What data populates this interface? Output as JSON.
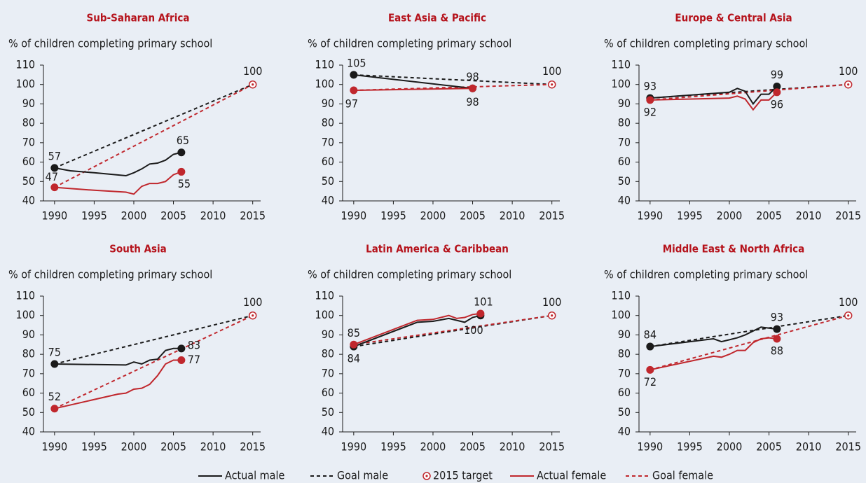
{
  "chart_data": [
    {
      "type": "line",
      "title": "Sub-Saharan Africa",
      "ylabel": "% of children completing primary school",
      "xlim": [
        1988.6,
        2016
      ],
      "xticks": [
        1990,
        1995,
        2000,
        2005,
        2010,
        2015
      ],
      "ylim": [
        40,
        110
      ],
      "yticks": [
        40,
        50,
        60,
        70,
        80,
        90,
        100,
        110
      ],
      "series": [
        {
          "name": "Actual male",
          "color": "#1a1a1a",
          "style": "solid",
          "x": [
            1990,
            1992,
            1995,
            1999,
            2000,
            2001,
            2002,
            2003,
            2004,
            2005,
            2006
          ],
          "values": [
            57,
            55.5,
            54.5,
            53,
            54.5,
            56.5,
            59,
            59.5,
            61,
            64,
            65
          ]
        },
        {
          "name": "Goal male",
          "color": "#1a1a1a",
          "style": "dashed",
          "x": [
            1990,
            2015
          ],
          "values": [
            57,
            100
          ]
        },
        {
          "name": "2015 target",
          "color": "#c0272d",
          "style": "target",
          "x": [
            2015
          ],
          "values": [
            100
          ]
        },
        {
          "name": "Actual female",
          "color": "#c0272d",
          "style": "solid",
          "x": [
            1990,
            1995,
            1999,
            2000,
            2001,
            2002,
            2003,
            2004,
            2005,
            2006
          ],
          "values": [
            47,
            45.5,
            44.5,
            43.5,
            47.5,
            49,
            49,
            50,
            53.5,
            55
          ]
        },
        {
          "name": "Goal female",
          "color": "#c0272d",
          "style": "dashed",
          "x": [
            1990,
            2015
          ],
          "values": [
            47,
            100
          ]
        }
      ]
    },
    {
      "type": "line",
      "title": "East Asia & Pacific",
      "ylabel": "% of children completing primary school",
      "xlim": [
        1988.6,
        2016
      ],
      "xticks": [
        1990,
        1995,
        2000,
        2005,
        2010,
        2015
      ],
      "ylim": [
        40,
        110
      ],
      "yticks": [
        40,
        50,
        60,
        70,
        80,
        90,
        100,
        110
      ],
      "series": [
        {
          "name": "Actual male",
          "color": "#1a1a1a",
          "style": "solid",
          "x": [
            1990,
            2005
          ],
          "values": [
            105,
            98
          ]
        },
        {
          "name": "Goal male",
          "color": "#1a1a1a",
          "style": "dashed",
          "x": [
            1990,
            2015
          ],
          "values": [
            105,
            100
          ]
        },
        {
          "name": "2015 target",
          "color": "#c0272d",
          "style": "target",
          "x": [
            2015
          ],
          "values": [
            100
          ]
        },
        {
          "name": "Actual female",
          "color": "#c0272d",
          "style": "solid",
          "x": [
            1990,
            2005
          ],
          "values": [
            97,
            98
          ]
        },
        {
          "name": "Goal female",
          "color": "#c0272d",
          "style": "dashed",
          "x": [
            1990,
            2015
          ],
          "values": [
            97,
            100
          ]
        }
      ]
    },
    {
      "type": "line",
      "title": "Europe & Central Asia",
      "ylabel": "% of children completing primary school",
      "xlim": [
        1988.6,
        2016
      ],
      "xticks": [
        1990,
        1995,
        2000,
        2005,
        2010,
        2015
      ],
      "ylim": [
        40,
        110
      ],
      "yticks": [
        40,
        50,
        60,
        70,
        80,
        90,
        100,
        110
      ],
      "series": [
        {
          "name": "Actual male",
          "color": "#1a1a1a",
          "style": "solid",
          "x": [
            1990,
            2000,
            2001,
            2002,
            2003,
            2004,
            2005,
            2006
          ],
          "values": [
            93,
            96,
            98,
            96.5,
            90,
            95,
            95,
            99
          ]
        },
        {
          "name": "Goal male",
          "color": "#1a1a1a",
          "style": "dashed",
          "x": [
            1990,
            2015
          ],
          "values": [
            93,
            100
          ]
        },
        {
          "name": "2015 target",
          "color": "#c0272d",
          "style": "target",
          "x": [
            2015
          ],
          "values": [
            100
          ]
        },
        {
          "name": "Actual female",
          "color": "#c0272d",
          "style": "solid",
          "x": [
            1990,
            2000,
            2001,
            2002,
            2003,
            2004,
            2005,
            2006
          ],
          "values": [
            92,
            93,
            94,
            92.5,
            87,
            92,
            92,
            96
          ]
        },
        {
          "name": "Goal female",
          "color": "#c0272d",
          "style": "dashed",
          "x": [
            1990,
            2015
          ],
          "values": [
            92,
            100
          ]
        }
      ]
    },
    {
      "type": "line",
      "title": "South Asia",
      "ylabel": "% of children completing primary school",
      "xlim": [
        1988.6,
        2016
      ],
      "xticks": [
        1990,
        1995,
        2000,
        2005,
        2010,
        2015
      ],
      "ylim": [
        40,
        110
      ],
      "yticks": [
        40,
        50,
        60,
        70,
        80,
        90,
        100,
        110
      ],
      "series": [
        {
          "name": "Actual male",
          "color": "#1a1a1a",
          "style": "solid",
          "x": [
            1990,
            1999,
            2000,
            2001,
            2002,
            2003,
            2004,
            2005,
            2006
          ],
          "values": [
            75,
            74.5,
            76,
            75,
            77,
            77.5,
            82,
            83,
            83
          ]
        },
        {
          "name": "Goal male",
          "color": "#1a1a1a",
          "style": "dashed",
          "x": [
            1990,
            2015
          ],
          "values": [
            75,
            100
          ]
        },
        {
          "name": "2015 target",
          "color": "#c0272d",
          "style": "target",
          "x": [
            2015
          ],
          "values": [
            100
          ]
        },
        {
          "name": "Actual female",
          "color": "#c0272d",
          "style": "solid",
          "x": [
            1990,
            1998,
            1999,
            2000,
            2001,
            2002,
            2003,
            2004,
            2005,
            2006
          ],
          "values": [
            52,
            59.5,
            60,
            62,
            62.5,
            64.5,
            69,
            75,
            77,
            77
          ]
        },
        {
          "name": "Goal female",
          "color": "#c0272d",
          "style": "dashed",
          "x": [
            1990,
            2015
          ],
          "values": [
            52,
            100
          ]
        }
      ]
    },
    {
      "type": "line",
      "title": "Latin America & Caribbean",
      "ylabel": "% of children completing primary school",
      "xlim": [
        1988.6,
        2016
      ],
      "xticks": [
        1990,
        1995,
        2000,
        2005,
        2010,
        2015
      ],
      "ylim": [
        40,
        110
      ],
      "yticks": [
        40,
        50,
        60,
        70,
        80,
        90,
        100,
        110
      ],
      "series": [
        {
          "name": "Actual male",
          "color": "#1a1a1a",
          "style": "solid",
          "x": [
            1990,
            1998,
            2000,
            2002,
            2003,
            2004,
            2005,
            2006
          ],
          "values": [
            84,
            96.5,
            97,
            98.5,
            97.5,
            96.5,
            99,
            100
          ]
        },
        {
          "name": "Goal male",
          "color": "#1a1a1a",
          "style": "dashed",
          "x": [
            1990,
            2015
          ],
          "values": [
            84,
            100
          ]
        },
        {
          "name": "2015 target",
          "color": "#c0272d",
          "style": "target",
          "x": [
            2015
          ],
          "values": [
            100
          ]
        },
        {
          "name": "Actual female",
          "color": "#c0272d",
          "style": "solid",
          "x": [
            1990,
            1998,
            2000,
            2002,
            2003,
            2004,
            2005,
            2006
          ],
          "values": [
            85,
            97.5,
            98,
            100,
            98.5,
            99,
            100.5,
            101
          ]
        },
        {
          "name": "Goal female",
          "color": "#c0272d",
          "style": "dashed",
          "x": [
            1990,
            2015
          ],
          "values": [
            85,
            100
          ]
        }
      ]
    },
    {
      "type": "line",
      "title": "Middle East & North Africa",
      "ylabel": "% of children completing primary school",
      "xlim": [
        1988.6,
        2016
      ],
      "xticks": [
        1990,
        1995,
        2000,
        2005,
        2010,
        2015
      ],
      "ylim": [
        40,
        110
      ],
      "yticks": [
        40,
        50,
        60,
        70,
        80,
        90,
        100,
        110
      ],
      "series": [
        {
          "name": "Actual male",
          "color": "#1a1a1a",
          "style": "solid",
          "x": [
            1990,
            1998,
            1999,
            2000,
            2001,
            2002,
            2003,
            2004,
            2005,
            2006
          ],
          "values": [
            84,
            88,
            86.5,
            87.5,
            88.5,
            90,
            92,
            94,
            93.5,
            93
          ]
        },
        {
          "name": "Goal male",
          "color": "#1a1a1a",
          "style": "dashed",
          "x": [
            1990,
            2015
          ],
          "values": [
            84,
            100
          ]
        },
        {
          "name": "2015 target",
          "color": "#c0272d",
          "style": "target",
          "x": [
            2015
          ],
          "values": [
            100
          ]
        },
        {
          "name": "Actual female",
          "color": "#c0272d",
          "style": "solid",
          "x": [
            1990,
            1998,
            1999,
            2000,
            2001,
            2002,
            2003,
            2004,
            2005,
            2006
          ],
          "values": [
            72,
            79,
            78.5,
            80,
            82,
            82,
            86,
            88,
            88.5,
            88
          ]
        },
        {
          "name": "Goal female",
          "color": "#c0272d",
          "style": "dashed",
          "x": [
            1990,
            2015
          ],
          "values": [
            72,
            100
          ]
        }
      ]
    }
  ]
}
